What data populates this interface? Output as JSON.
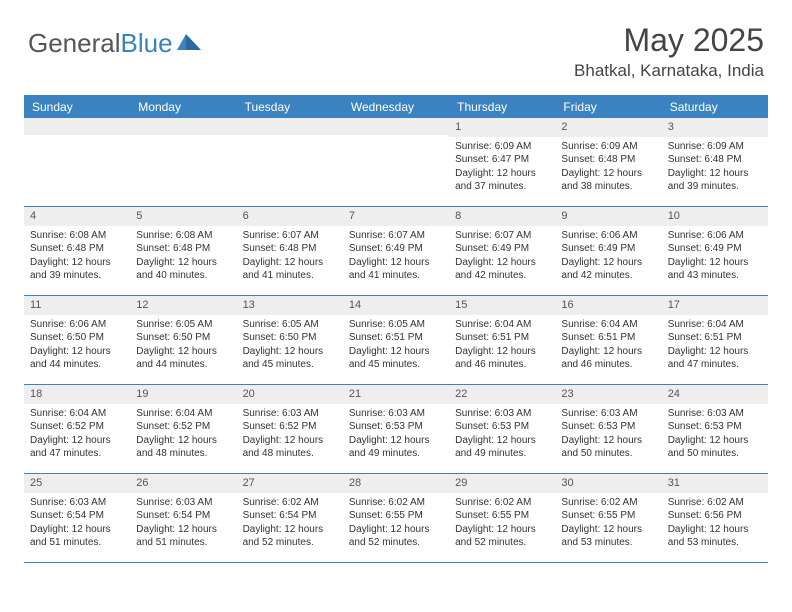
{
  "logo": {
    "text1": "General",
    "text2": "Blue"
  },
  "title": "May 2025",
  "location": "Bhatkal, Karnataka, India",
  "header_bg": "#3b83c0",
  "days": [
    "Sunday",
    "Monday",
    "Tuesday",
    "Wednesday",
    "Thursday",
    "Friday",
    "Saturday"
  ],
  "weeks": [
    [
      {
        "n": "",
        "sr": "",
        "ss": "",
        "dl": ""
      },
      {
        "n": "",
        "sr": "",
        "ss": "",
        "dl": ""
      },
      {
        "n": "",
        "sr": "",
        "ss": "",
        "dl": ""
      },
      {
        "n": "",
        "sr": "",
        "ss": "",
        "dl": ""
      },
      {
        "n": "1",
        "sr": "Sunrise: 6:09 AM",
        "ss": "Sunset: 6:47 PM",
        "dl": "Daylight: 12 hours and 37 minutes."
      },
      {
        "n": "2",
        "sr": "Sunrise: 6:09 AM",
        "ss": "Sunset: 6:48 PM",
        "dl": "Daylight: 12 hours and 38 minutes."
      },
      {
        "n": "3",
        "sr": "Sunrise: 6:09 AM",
        "ss": "Sunset: 6:48 PM",
        "dl": "Daylight: 12 hours and 39 minutes."
      }
    ],
    [
      {
        "n": "4",
        "sr": "Sunrise: 6:08 AM",
        "ss": "Sunset: 6:48 PM",
        "dl": "Daylight: 12 hours and 39 minutes."
      },
      {
        "n": "5",
        "sr": "Sunrise: 6:08 AM",
        "ss": "Sunset: 6:48 PM",
        "dl": "Daylight: 12 hours and 40 minutes."
      },
      {
        "n": "6",
        "sr": "Sunrise: 6:07 AM",
        "ss": "Sunset: 6:48 PM",
        "dl": "Daylight: 12 hours and 41 minutes."
      },
      {
        "n": "7",
        "sr": "Sunrise: 6:07 AM",
        "ss": "Sunset: 6:49 PM",
        "dl": "Daylight: 12 hours and 41 minutes."
      },
      {
        "n": "8",
        "sr": "Sunrise: 6:07 AM",
        "ss": "Sunset: 6:49 PM",
        "dl": "Daylight: 12 hours and 42 minutes."
      },
      {
        "n": "9",
        "sr": "Sunrise: 6:06 AM",
        "ss": "Sunset: 6:49 PM",
        "dl": "Daylight: 12 hours and 42 minutes."
      },
      {
        "n": "10",
        "sr": "Sunrise: 6:06 AM",
        "ss": "Sunset: 6:49 PM",
        "dl": "Daylight: 12 hours and 43 minutes."
      }
    ],
    [
      {
        "n": "11",
        "sr": "Sunrise: 6:06 AM",
        "ss": "Sunset: 6:50 PM",
        "dl": "Daylight: 12 hours and 44 minutes."
      },
      {
        "n": "12",
        "sr": "Sunrise: 6:05 AM",
        "ss": "Sunset: 6:50 PM",
        "dl": "Daylight: 12 hours and 44 minutes."
      },
      {
        "n": "13",
        "sr": "Sunrise: 6:05 AM",
        "ss": "Sunset: 6:50 PM",
        "dl": "Daylight: 12 hours and 45 minutes."
      },
      {
        "n": "14",
        "sr": "Sunrise: 6:05 AM",
        "ss": "Sunset: 6:51 PM",
        "dl": "Daylight: 12 hours and 45 minutes."
      },
      {
        "n": "15",
        "sr": "Sunrise: 6:04 AM",
        "ss": "Sunset: 6:51 PM",
        "dl": "Daylight: 12 hours and 46 minutes."
      },
      {
        "n": "16",
        "sr": "Sunrise: 6:04 AM",
        "ss": "Sunset: 6:51 PM",
        "dl": "Daylight: 12 hours and 46 minutes."
      },
      {
        "n": "17",
        "sr": "Sunrise: 6:04 AM",
        "ss": "Sunset: 6:51 PM",
        "dl": "Daylight: 12 hours and 47 minutes."
      }
    ],
    [
      {
        "n": "18",
        "sr": "Sunrise: 6:04 AM",
        "ss": "Sunset: 6:52 PM",
        "dl": "Daylight: 12 hours and 47 minutes."
      },
      {
        "n": "19",
        "sr": "Sunrise: 6:04 AM",
        "ss": "Sunset: 6:52 PM",
        "dl": "Daylight: 12 hours and 48 minutes."
      },
      {
        "n": "20",
        "sr": "Sunrise: 6:03 AM",
        "ss": "Sunset: 6:52 PM",
        "dl": "Daylight: 12 hours and 48 minutes."
      },
      {
        "n": "21",
        "sr": "Sunrise: 6:03 AM",
        "ss": "Sunset: 6:53 PM",
        "dl": "Daylight: 12 hours and 49 minutes."
      },
      {
        "n": "22",
        "sr": "Sunrise: 6:03 AM",
        "ss": "Sunset: 6:53 PM",
        "dl": "Daylight: 12 hours and 49 minutes."
      },
      {
        "n": "23",
        "sr": "Sunrise: 6:03 AM",
        "ss": "Sunset: 6:53 PM",
        "dl": "Daylight: 12 hours and 50 minutes."
      },
      {
        "n": "24",
        "sr": "Sunrise: 6:03 AM",
        "ss": "Sunset: 6:53 PM",
        "dl": "Daylight: 12 hours and 50 minutes."
      }
    ],
    [
      {
        "n": "25",
        "sr": "Sunrise: 6:03 AM",
        "ss": "Sunset: 6:54 PM",
        "dl": "Daylight: 12 hours and 51 minutes."
      },
      {
        "n": "26",
        "sr": "Sunrise: 6:03 AM",
        "ss": "Sunset: 6:54 PM",
        "dl": "Daylight: 12 hours and 51 minutes."
      },
      {
        "n": "27",
        "sr": "Sunrise: 6:02 AM",
        "ss": "Sunset: 6:54 PM",
        "dl": "Daylight: 12 hours and 52 minutes."
      },
      {
        "n": "28",
        "sr": "Sunrise: 6:02 AM",
        "ss": "Sunset: 6:55 PM",
        "dl": "Daylight: 12 hours and 52 minutes."
      },
      {
        "n": "29",
        "sr": "Sunrise: 6:02 AM",
        "ss": "Sunset: 6:55 PM",
        "dl": "Daylight: 12 hours and 52 minutes."
      },
      {
        "n": "30",
        "sr": "Sunrise: 6:02 AM",
        "ss": "Sunset: 6:55 PM",
        "dl": "Daylight: 12 hours and 53 minutes."
      },
      {
        "n": "31",
        "sr": "Sunrise: 6:02 AM",
        "ss": "Sunset: 6:56 PM",
        "dl": "Daylight: 12 hours and 53 minutes."
      }
    ]
  ]
}
